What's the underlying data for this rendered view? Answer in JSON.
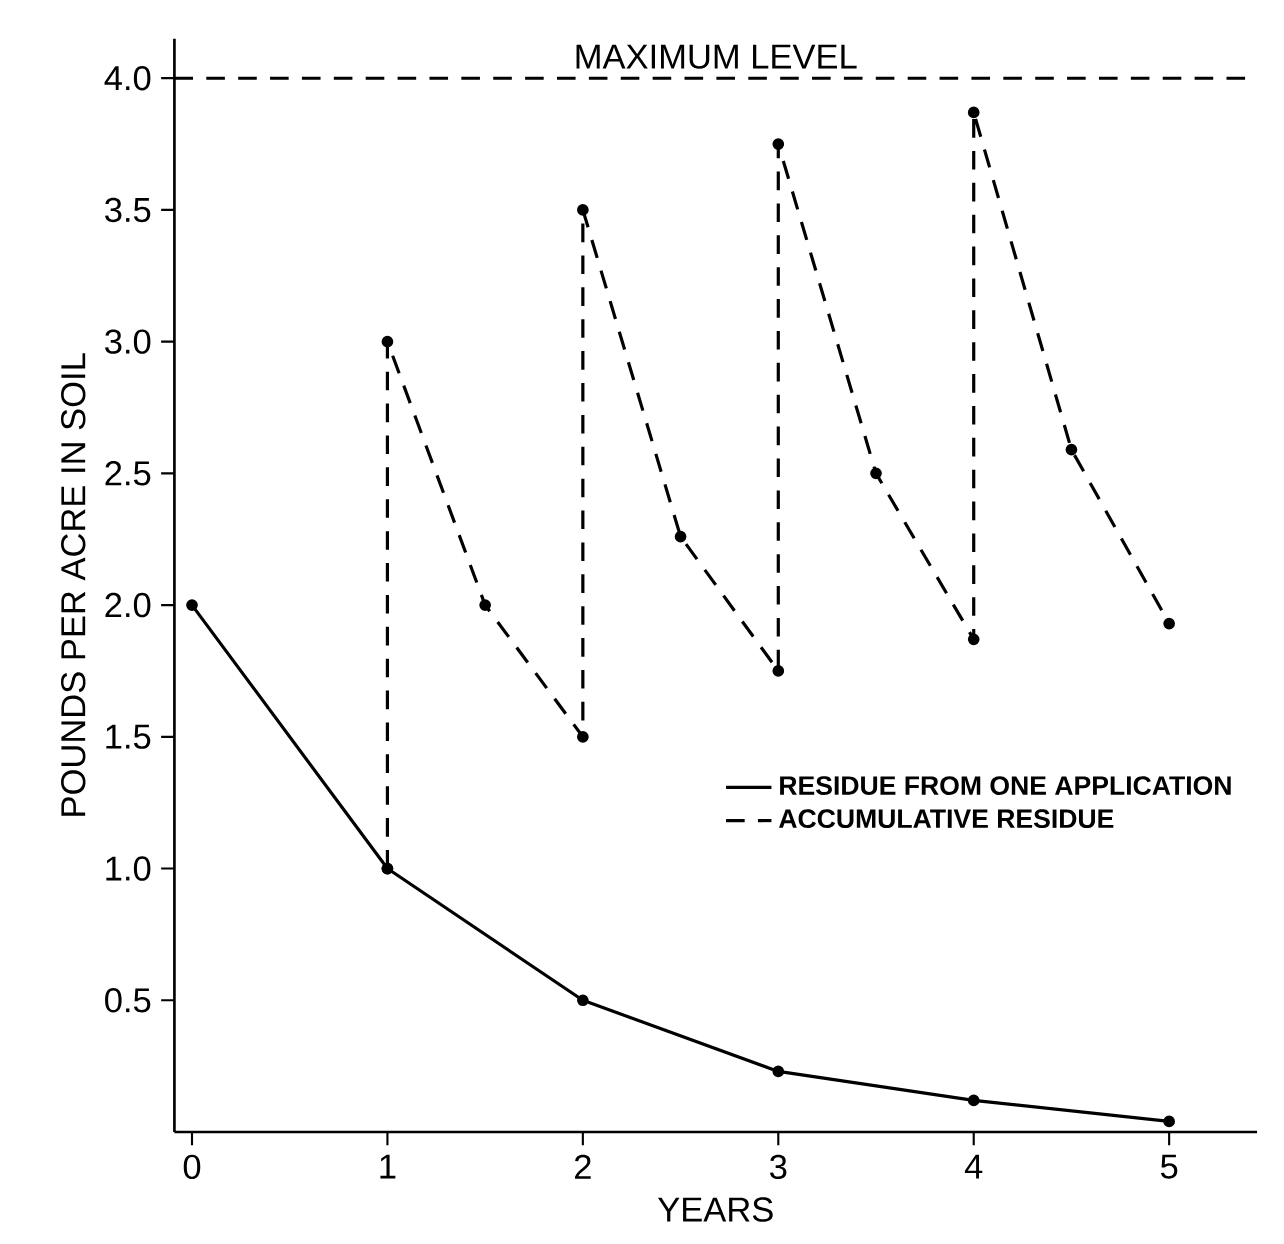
{
  "chart_data": {
    "type": "line",
    "xlabel": "YEARS",
    "ylabel": "POUNDS PER ACRE IN SOIL",
    "xlim": [
      -0.09,
      5.45
    ],
    "ylim": [
      0,
      4.15
    ],
    "xticks": [
      0,
      1,
      2,
      3,
      4,
      5
    ],
    "yticks": [
      {
        "value": 0.5,
        "label": "0.5"
      },
      {
        "value": 1.0,
        "label": "1.0"
      },
      {
        "value": 1.5,
        "label": "1.5"
      },
      {
        "value": 2.0,
        "label": "2.0"
      },
      {
        "value": 2.5,
        "label": "2.5"
      },
      {
        "value": 3.0,
        "label": "3.0"
      },
      {
        "value": 3.5,
        "label": "3.5"
      },
      {
        "value": 4.0,
        "label": "4.0"
      }
    ],
    "series": [
      {
        "name": "RESIDUE FROM ONE APPLICATION",
        "color": "#000000",
        "line_style": "solid",
        "x": [
          0,
          1,
          2,
          3,
          4,
          5
        ],
        "values": [
          2.0,
          1.0,
          0.5,
          0.23,
          0.12,
          0.04
        ]
      },
      {
        "name": "ACCUMULATIVE RESIDUE",
        "color": "#000000",
        "line_style": "dashed",
        "x": [
          1,
          1,
          1.5,
          2,
          2,
          2.5,
          3,
          3,
          3.5,
          4,
          4,
          4.5,
          5
        ],
        "values": [
          1.0,
          3.0,
          2.0,
          1.5,
          3.5,
          2.26,
          1.75,
          3.75,
          2.5,
          1.87,
          3.87,
          2.59,
          1.93
        ]
      }
    ],
    "marker": "circle",
    "legend": "right",
    "ref_lines": [
      {
        "axis": "y",
        "value": 4.0,
        "label": "MAXIMUM LEVEL",
        "color": "#000000",
        "line_style": "dashed"
      }
    ]
  }
}
